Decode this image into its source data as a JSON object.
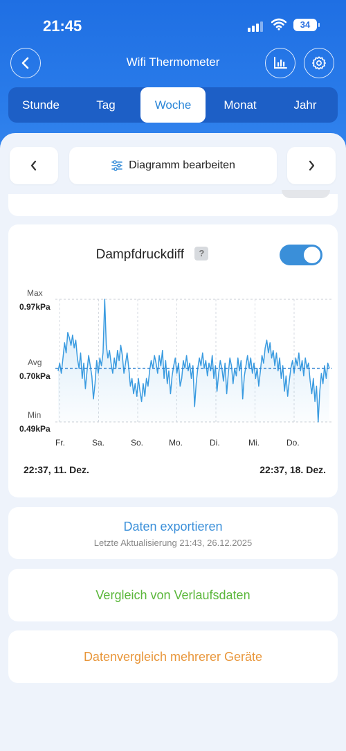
{
  "status": {
    "time": "21:45",
    "battery": "34"
  },
  "header": {
    "title": "Wifi Thermometer"
  },
  "tabs": [
    {
      "label": "Stunde"
    },
    {
      "label": "Tag"
    },
    {
      "label": "Woche"
    },
    {
      "label": "Monat"
    },
    {
      "label": "Jahr"
    }
  ],
  "active_tab": "Woche",
  "toolbar": {
    "edit_label": "Diagramm bearbeiten"
  },
  "chart_card": {
    "title": "Dampfdruckdiff",
    "help": "?",
    "toggle_on": true,
    "max_label": "Max",
    "max_value": "0.97kPa",
    "avg_label": "Avg",
    "avg_value": "0.70kPa",
    "min_label": "Min",
    "min_value": "0.49kPa",
    "start": "22:37,  11. Dez.",
    "end": "22:37,  18. Dez."
  },
  "chart_data": {
    "type": "line",
    "x_tick_labels": [
      "Fr.",
      "Sa.",
      "So.",
      "Mo.",
      "Di.",
      "Mi.",
      "Do."
    ],
    "ylim": [
      0.49,
      0.97
    ],
    "avg": 0.7,
    "grid": true,
    "series": [
      {
        "values": [
          0.69,
          0.72,
          0.68,
          0.74,
          0.8,
          0.76,
          0.84,
          0.82,
          0.79,
          0.83,
          0.78,
          0.81,
          0.74,
          0.7,
          0.76,
          0.66,
          0.72,
          0.62,
          0.69,
          0.75,
          0.71,
          0.67,
          0.58,
          0.64,
          0.73,
          0.68,
          0.74,
          0.71,
          0.76,
          0.97,
          0.79,
          0.74,
          0.77,
          0.72,
          0.68,
          0.74,
          0.7,
          0.77,
          0.73,
          0.79,
          0.75,
          0.68,
          0.72,
          0.76,
          0.7,
          0.63,
          0.66,
          0.6,
          0.64,
          0.59,
          0.66,
          0.61,
          0.57,
          0.64,
          0.59,
          0.66,
          0.63,
          0.69,
          0.73,
          0.7,
          0.75,
          0.72,
          0.68,
          0.75,
          0.71,
          0.77,
          0.66,
          0.73,
          0.64,
          0.69,
          0.6,
          0.67,
          0.71,
          0.74,
          0.68,
          0.72,
          0.63,
          0.66,
          0.73,
          0.7,
          0.75,
          0.69,
          0.72,
          0.66,
          0.71,
          0.55,
          0.64,
          0.7,
          0.74,
          0.71,
          0.76,
          0.7,
          0.73,
          0.67,
          0.72,
          0.69,
          0.75,
          0.66,
          0.71,
          0.61,
          0.68,
          0.73,
          0.7,
          0.65,
          0.72,
          0.6,
          0.68,
          0.74,
          0.71,
          0.64,
          0.7,
          0.67,
          0.74,
          0.69,
          0.73,
          0.58,
          0.67,
          0.71,
          0.75,
          0.7,
          0.74,
          0.68,
          0.72,
          0.66,
          0.7,
          0.63,
          0.69,
          0.75,
          0.72,
          0.78,
          0.81,
          0.76,
          0.8,
          0.74,
          0.77,
          0.71,
          0.76,
          0.69,
          0.74,
          0.66,
          0.71,
          0.61,
          0.67,
          0.59,
          0.65,
          0.7,
          0.73,
          0.68,
          0.74,
          0.71,
          0.76,
          0.69,
          0.73,
          0.67,
          0.74,
          0.7,
          0.72,
          0.65,
          0.6,
          0.66,
          0.57,
          0.63,
          0.49,
          0.61,
          0.68,
          0.64,
          0.71,
          0.66,
          0.72,
          0.7
        ]
      }
    ]
  }
}
